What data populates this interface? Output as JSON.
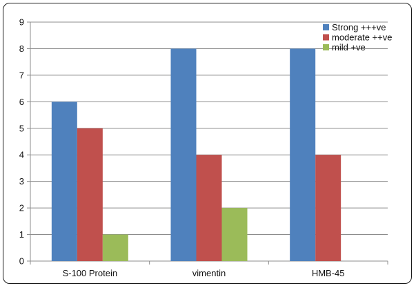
{
  "chart_data": {
    "type": "bar",
    "title": "",
    "xlabel": "",
    "ylabel": "",
    "categories": [
      "S-100 Protein",
      "vimentin",
      "HMB-45"
    ],
    "series": [
      {
        "name": "Strong +++ve",
        "color": "#4f81bd",
        "values": [
          6,
          8,
          8
        ]
      },
      {
        "name": "moderate ++ve",
        "color": "#c0504d",
        "values": [
          5,
          4,
          4
        ]
      },
      {
        "name": "mild +ve",
        "color": "#9bbb59",
        "values": [
          1,
          2,
          0
        ]
      }
    ],
    "ylim": [
      0,
      9
    ],
    "yticks": [
      0,
      1,
      2,
      3,
      4,
      5,
      6,
      7,
      8,
      9
    ],
    "grid": true,
    "legend_position": "top-right",
    "colors": {
      "grid": "#8c8c8c",
      "axis": "#8c8c8c",
      "frame": "#1a1a1a",
      "text": "#111111"
    }
  }
}
